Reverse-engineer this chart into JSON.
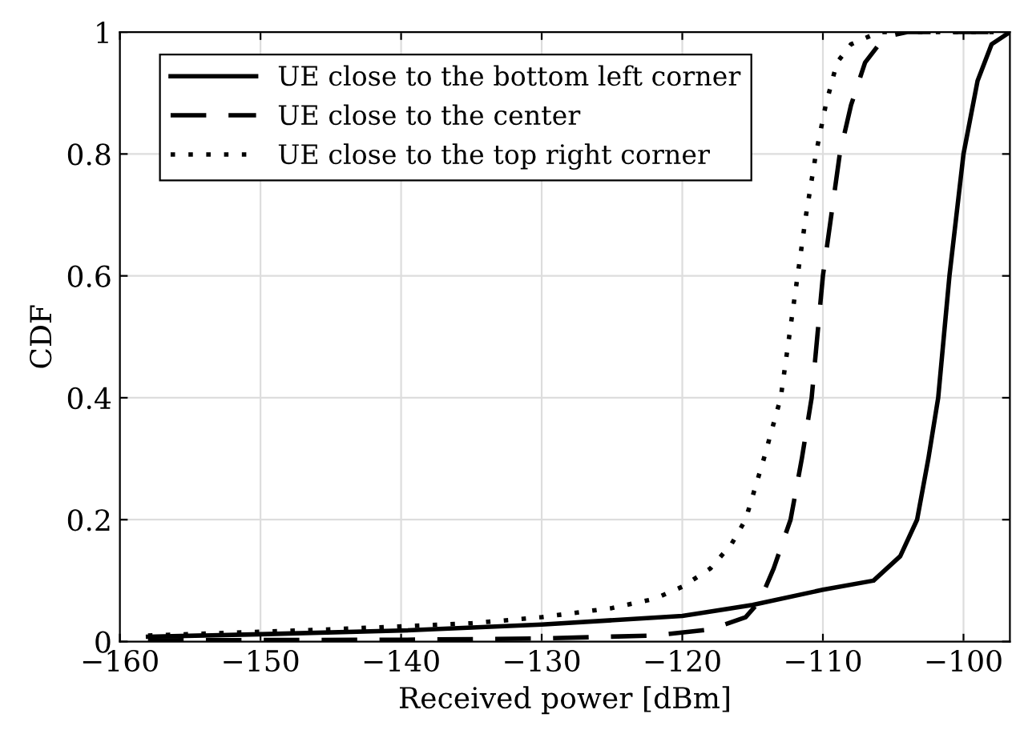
{
  "chart_data": {
    "type": "line",
    "xlabel": "Received power [dBm]",
    "ylabel": "CDF",
    "xlim": [
      -160,
      -96.7
    ],
    "xticks": [
      {
        "value": -160,
        "label": "−160"
      },
      {
        "value": -150,
        "label": "−150"
      },
      {
        "value": -140,
        "label": "−140"
      },
      {
        "value": -130,
        "label": "−130"
      },
      {
        "value": -120,
        "label": "−120"
      },
      {
        "value": -110,
        "label": "−110"
      },
      {
        "value": -100,
        "label": "−100"
      }
    ],
    "ylim": [
      0,
      1
    ],
    "yticks": [
      0,
      0.2,
      0.4,
      0.6,
      0.8,
      1
    ],
    "grid": true,
    "legend": "top left",
    "marker": "none",
    "series": [
      {
        "name": "UE close to the bottom left corner",
        "color": "#000000",
        "line_style": "solid",
        "x": [
          -158,
          -150,
          -140,
          -130,
          -120,
          -115,
          -110,
          -106.4,
          -104.5,
          -103.3,
          -102.5,
          -101.8,
          -101.4,
          -101,
          -100.5,
          -100,
          -99,
          -98,
          -96.7
        ],
        "values": [
          0.008,
          0.012,
          0.018,
          0.028,
          0.042,
          0.06,
          0.085,
          0.1,
          0.14,
          0.2,
          0.3,
          0.4,
          0.5,
          0.6,
          0.7,
          0.8,
          0.92,
          0.98,
          1
        ]
      },
      {
        "name": "UE close to the center",
        "color": "#000000",
        "line_style": "dashed",
        "x": [
          -158,
          -140,
          -130,
          -122,
          -118,
          -115.5,
          -114.5,
          -113.5,
          -112.3,
          -111.5,
          -110.8,
          -110.4,
          -110,
          -109.4,
          -108.8,
          -108,
          -107,
          -106,
          -105,
          -104,
          -96.7
        ],
        "values": [
          0.002,
          0.003,
          0.005,
          0.01,
          0.02,
          0.04,
          0.066,
          0.12,
          0.2,
          0.3,
          0.4,
          0.5,
          0.6,
          0.7,
          0.8,
          0.88,
          0.95,
          0.98,
          0.995,
          1,
          1
        ]
      },
      {
        "name": "UE close to the top right corner",
        "color": "#000000",
        "line_style": "dotted",
        "x": [
          -158,
          -145,
          -135,
          -130,
          -125,
          -122,
          -120,
          -118,
          -116.5,
          -115.5,
          -114.2,
          -113,
          -112.4,
          -111.8,
          -111.2,
          -110.5,
          -109.8,
          -109,
          -108,
          -106,
          -96.7
        ],
        "values": [
          0.01,
          0.02,
          0.03,
          0.04,
          0.055,
          0.07,
          0.09,
          0.12,
          0.16,
          0.2,
          0.3,
          0.4,
          0.5,
          0.6,
          0.7,
          0.8,
          0.88,
          0.95,
          0.98,
          1,
          1
        ]
      }
    ]
  }
}
